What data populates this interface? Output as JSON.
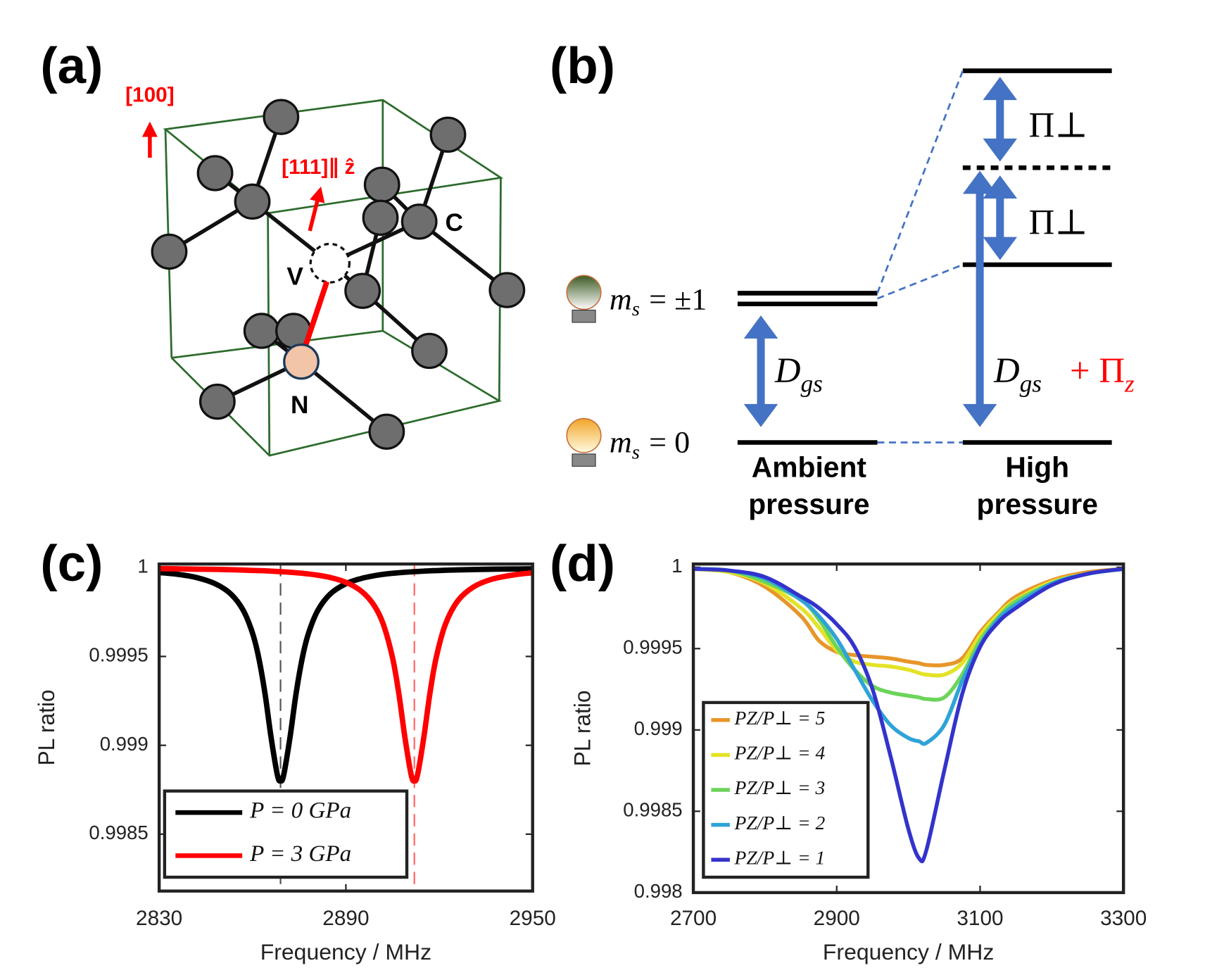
{
  "diagram_a": {
    "label": "(a)",
    "axis_100": "[100]",
    "axis_111": "[111]∥ ẑ",
    "atom_c": "C",
    "vacancy": "V",
    "nitrogen": "N"
  },
  "diagram_b": {
    "label": "(b)",
    "ms_pm1": {
      "symbol": "m",
      "subscript": "s",
      "rest": "= ±1"
    },
    "ms_0": {
      "symbol": "m",
      "subscript": "s",
      "rest": "= 0"
    },
    "dgs_ambient": {
      "symbol": "D",
      "subscript": "gs"
    },
    "dgs_high": {
      "symbol": "D",
      "subscript": "gs"
    },
    "pi_z": {
      "prefix": "+ Π",
      "subscript": "z"
    },
    "pi_perp_top": "Π⊥",
    "pi_perp_bottom": "Π⊥",
    "ambient": [
      "Ambient",
      "pressure"
    ],
    "high": [
      "High",
      "pressure"
    ]
  },
  "chart_data": [
    {
      "type": "line",
      "panel_label": "(c)",
      "xlabel": "Frequency / MHz",
      "ylabel": "PL ratio",
      "x": [
        2830,
        2836,
        2842,
        2848,
        2853,
        2857,
        2860,
        2862,
        2864,
        2866,
        2868,
        2869,
        2870,
        2872,
        2874,
        2876,
        2878,
        2881,
        2885,
        2890,
        2895,
        2899,
        2902,
        2905,
        2907,
        2909,
        2911,
        2912,
        2913,
        2915,
        2917,
        2919,
        2922,
        2926,
        2931,
        2937,
        2944,
        2950
      ],
      "xlim": [
        2830,
        2950
      ],
      "xticks": [
        2830,
        2890,
        2950
      ],
      "ylim": [
        0.99818,
        1.00002
      ],
      "yticks": [
        0.9985,
        0.999,
        0.9995,
        1
      ],
      "grid": false,
      "legend": "lower left",
      "series": [
        {
          "name": "P = 0 GPa",
          "color": "#000000",
          "values": [
            0.999972,
            0.999962,
            0.999944,
            0.999909,
            0.999852,
            0.99976,
            0.999631,
            0.999492,
            0.999292,
            0.99904,
            0.998832,
            0.9988,
            0.998832,
            0.99904,
            0.999292,
            0.999492,
            0.999631,
            0.99976,
            0.999852,
            0.999909,
            0.999939,
            0.999954,
            0.999962,
            0.999968,
            0.999971,
            0.999974,
            0.999976,
            0.999977,
            0.999978,
            0.99998,
            0.999982,
            0.999983,
            0.999985,
            0.999987,
            0.999989,
            0.999991,
            0.999992,
            0.999993
          ]
        },
        {
          "name": "P = 3 GPa",
          "color": "#ff0000",
          "values": [
            0.999994,
            0.999993,
            0.999991,
            0.99999,
            0.999988,
            0.999986,
            0.999984,
            0.999983,
            0.999982,
            0.99998,
            0.999978,
            0.999977,
            0.999976,
            0.999974,
            0.999971,
            0.999968,
            0.999964,
            0.999957,
            0.999944,
            0.999917,
            0.999867,
            0.999789,
            0.999682,
            0.999492,
            0.999292,
            0.99904,
            0.998832,
            0.9988,
            0.998832,
            0.99904,
            0.999292,
            0.999492,
            0.999682,
            0.999814,
            0.999891,
            0.999935,
            0.999959,
            0.999971
          ]
        }
      ],
      "reference_lines": [
        {
          "x": 2869,
          "color": "#555555"
        },
        {
          "x": 2912,
          "color": "#ff6666"
        }
      ]
    },
    {
      "type": "line",
      "panel_label": "(d)",
      "xlabel": "Frequency / MHz",
      "ylabel": "PL ratio",
      "x": [
        2700,
        2750,
        2800,
        2850,
        2875,
        2900,
        2925,
        2950,
        2975,
        3000,
        3015,
        3025,
        3050,
        3075,
        3100,
        3125,
        3150,
        3200,
        3250,
        3300
      ],
      "xlim": [
        2700,
        3300
      ],
      "xticks": [
        2700,
        2900,
        3100,
        3300
      ],
      "ylim": [
        0.998,
        1.00002
      ],
      "yticks": [
        0.998,
        0.9985,
        0.999,
        0.9995,
        1
      ],
      "grid": false,
      "legend": "lower left",
      "series": [
        {
          "name": "PZ/P⊥ = 5",
          "color": "#e8962a",
          "values": [
            0.99999,
            0.99997,
            0.99988,
            0.9997,
            0.99955,
            0.99948,
            0.99946,
            0.99945,
            0.99944,
            0.99942,
            0.99941,
            0.9994,
            0.9994,
            0.99944,
            0.9996,
            0.99972,
            0.99982,
            0.99992,
            0.99997,
            0.99999
          ]
        },
        {
          "name": "PZ/P⊥ = 4",
          "color": "#e3e326",
          "values": [
            0.99999,
            0.99997,
            0.9999,
            0.99975,
            0.99963,
            0.99949,
            0.99942,
            0.9994,
            0.99939,
            0.99937,
            0.99935,
            0.99934,
            0.99934,
            0.99941,
            0.99958,
            0.99971,
            0.9998,
            0.99991,
            0.99996,
            0.99999
          ]
        },
        {
          "name": "PZ/P⊥ = 3",
          "color": "#6cd45a",
          "values": [
            0.99999,
            0.99998,
            0.99991,
            0.9998,
            0.99968,
            0.99951,
            0.99937,
            0.99927,
            0.99923,
            0.99921,
            0.9992,
            0.99919,
            0.9992,
            0.99934,
            0.99955,
            0.99969,
            0.99979,
            0.9999,
            0.99996,
            0.99999
          ]
        },
        {
          "name": "PZ/P⊥ = 2",
          "color": "#2ea3d8",
          "values": [
            0.99999,
            0.99998,
            0.99993,
            0.9998,
            0.9997,
            0.99956,
            0.99937,
            0.99918,
            0.99903,
            0.99895,
            0.99893,
            0.99892,
            0.99903,
            0.9993,
            0.99952,
            0.99968,
            0.99977,
            0.9999,
            0.99996,
            0.99999
          ]
        },
        {
          "name": "PZ/P⊥ = 1",
          "color": "#3333cc",
          "values": [
            0.99999,
            0.99998,
            0.99994,
            0.99982,
            0.99975,
            0.99965,
            0.99951,
            0.99925,
            0.99884,
            0.99839,
            0.99821,
            0.99826,
            0.99875,
            0.99922,
            0.99951,
            0.99966,
            0.99975,
            0.99989,
            0.99996,
            0.99999
          ]
        }
      ]
    }
  ]
}
